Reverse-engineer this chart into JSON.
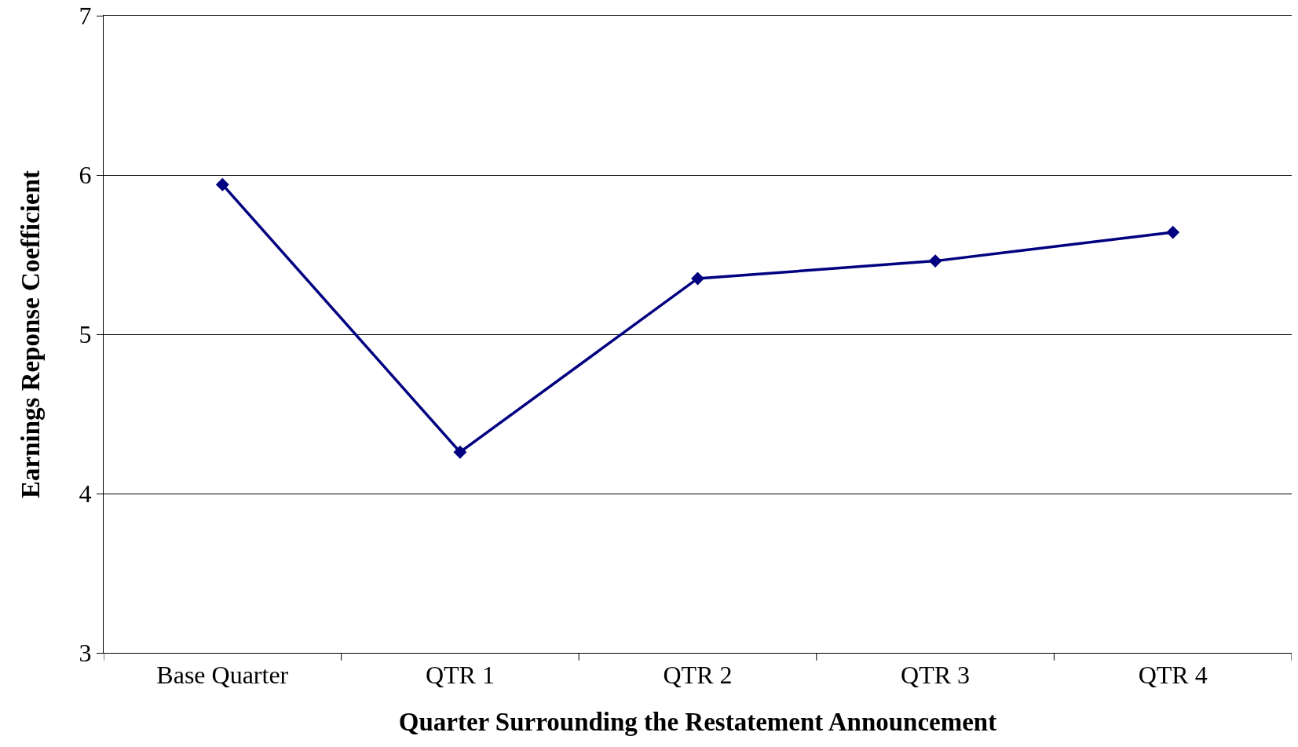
{
  "chart_data": {
    "type": "line",
    "xlabel": "Quarter Surrounding the Restatement Announcement",
    "ylabel": "Earnings Reponse Coefficient",
    "categories": [
      "Base Quarter",
      "QTR 1",
      "QTR 2",
      "QTR 3",
      "QTR 4"
    ],
    "series": [
      {
        "color": "#000080",
        "values": [
          5.94,
          4.26,
          5.35,
          5.46,
          5.64
        ]
      }
    ],
    "ylim": [
      3,
      7
    ],
    "yticks": [
      3,
      4,
      5,
      6,
      7
    ],
    "grid": "y",
    "marker": "diamond",
    "line_style": "solid"
  }
}
